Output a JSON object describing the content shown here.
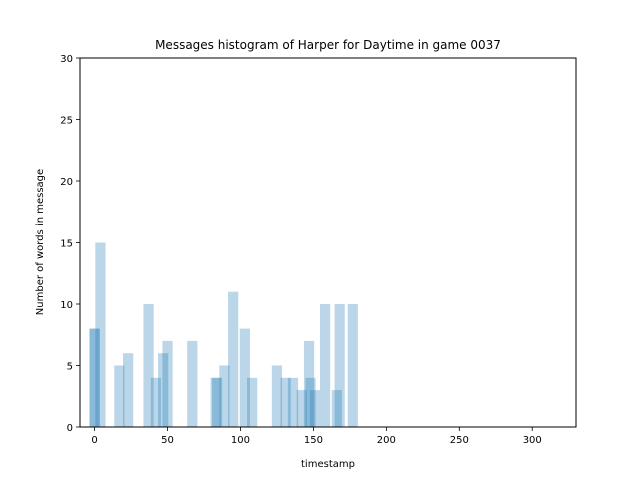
{
  "chart_data": {
    "type": "bar",
    "title": "Messages histogram of Harper for Daytime in game 0037",
    "xlabel": "timestamp",
    "ylabel": "Number of words in message",
    "xlim": [
      -10,
      330
    ],
    "ylim": [
      0,
      30
    ],
    "xticks": [
      0,
      50,
      100,
      150,
      200,
      250,
      300
    ],
    "yticks": [
      0,
      5,
      10,
      15,
      20,
      25,
      30
    ],
    "bar_width": 7,
    "bar_color": "#1f77b4",
    "bar_opacity": 0.3,
    "grid": false,
    "bars": [
      {
        "x": 0,
        "y": 8
      },
      {
        "x": 0,
        "y": 8
      },
      {
        "x": 4,
        "y": 15
      },
      {
        "x": 17,
        "y": 5
      },
      {
        "x": 23,
        "y": 6
      },
      {
        "x": 37,
        "y": 10
      },
      {
        "x": 42,
        "y": 4
      },
      {
        "x": 47,
        "y": 6
      },
      {
        "x": 50,
        "y": 7
      },
      {
        "x": 67,
        "y": 7
      },
      {
        "x": 83,
        "y": 4
      },
      {
        "x": 84,
        "y": 4
      },
      {
        "x": 89,
        "y": 5
      },
      {
        "x": 95,
        "y": 11
      },
      {
        "x": 103,
        "y": 8
      },
      {
        "x": 108,
        "y": 4
      },
      {
        "x": 125,
        "y": 5
      },
      {
        "x": 131,
        "y": 4
      },
      {
        "x": 136,
        "y": 4
      },
      {
        "x": 142,
        "y": 3
      },
      {
        "x": 147,
        "y": 7
      },
      {
        "x": 148,
        "y": 4
      },
      {
        "x": 151,
        "y": 3
      },
      {
        "x": 158,
        "y": 10
      },
      {
        "x": 166,
        "y": 3
      },
      {
        "x": 168,
        "y": 10
      },
      {
        "x": 177,
        "y": 10
      }
    ]
  }
}
